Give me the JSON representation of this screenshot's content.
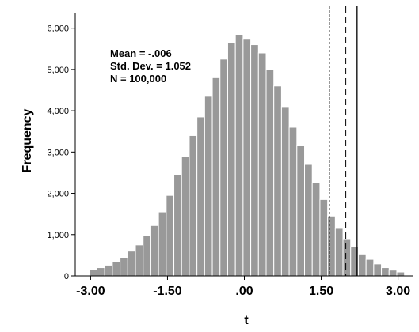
{
  "chart_data": {
    "type": "bar",
    "title": "",
    "xlabel": "t",
    "ylabel": "Frequency",
    "xlim": [
      -3.3,
      3.3
    ],
    "ylim": [
      0,
      6300
    ],
    "xticks": [
      -3.0,
      -1.5,
      0.0,
      1.5,
      3.0
    ],
    "xtick_labels": [
      "-3.00",
      "-1.50",
      ".00",
      "1.50",
      "3.00"
    ],
    "yticks": [
      0,
      1000,
      2000,
      3000,
      4000,
      5000,
      6000
    ],
    "ytick_labels": [
      "0",
      "1,000",
      "2,000",
      "3,000",
      "4,000",
      "5,000",
      "6,000"
    ],
    "bar_width": 0.15,
    "bar_color": "#999999",
    "bins": [
      {
        "x": -2.95,
        "y": 150
      },
      {
        "x": -2.8,
        "y": 200
      },
      {
        "x": -2.65,
        "y": 260
      },
      {
        "x": -2.5,
        "y": 340
      },
      {
        "x": -2.35,
        "y": 440
      },
      {
        "x": -2.2,
        "y": 600
      },
      {
        "x": -2.05,
        "y": 750
      },
      {
        "x": -1.9,
        "y": 980
      },
      {
        "x": -1.75,
        "y": 1220
      },
      {
        "x": -1.6,
        "y": 1550
      },
      {
        "x": -1.45,
        "y": 1950
      },
      {
        "x": -1.3,
        "y": 2450
      },
      {
        "x": -1.15,
        "y": 2900
      },
      {
        "x": -1.0,
        "y": 3400
      },
      {
        "x": -0.85,
        "y": 3850
      },
      {
        "x": -0.7,
        "y": 4350
      },
      {
        "x": -0.55,
        "y": 4800
      },
      {
        "x": -0.4,
        "y": 5250
      },
      {
        "x": -0.25,
        "y": 5650
      },
      {
        "x": -0.1,
        "y": 5850
      },
      {
        "x": 0.05,
        "y": 5750
      },
      {
        "x": 0.2,
        "y": 5600
      },
      {
        "x": 0.35,
        "y": 5400
      },
      {
        "x": 0.5,
        "y": 5000
      },
      {
        "x": 0.65,
        "y": 4600
      },
      {
        "x": 0.8,
        "y": 4100
      },
      {
        "x": 0.95,
        "y": 3600
      },
      {
        "x": 1.1,
        "y": 3150
      },
      {
        "x": 1.25,
        "y": 2700
      },
      {
        "x": 1.4,
        "y": 2250
      },
      {
        "x": 1.55,
        "y": 1850
      },
      {
        "x": 1.7,
        "y": 1450
      },
      {
        "x": 1.85,
        "y": 1150
      },
      {
        "x": 2.0,
        "y": 900
      },
      {
        "x": 2.15,
        "y": 700
      },
      {
        "x": 2.3,
        "y": 530
      },
      {
        "x": 2.45,
        "y": 400
      },
      {
        "x": 2.6,
        "y": 290
      },
      {
        "x": 2.75,
        "y": 200
      },
      {
        "x": 2.9,
        "y": 140
      },
      {
        "x": 3.05,
        "y": 95
      }
    ],
    "reference_lines": [
      {
        "x": 1.66,
        "style": "dotted"
      },
      {
        "x": 1.98,
        "style": "dashed"
      },
      {
        "x": 2.2,
        "style": "solid"
      }
    ],
    "stats": {
      "mean_label": "Mean = -.006",
      "sd_label": "Std. Dev. = 1.052",
      "n_label": "N = 100,000"
    },
    "grid": false,
    "legend": "none"
  }
}
